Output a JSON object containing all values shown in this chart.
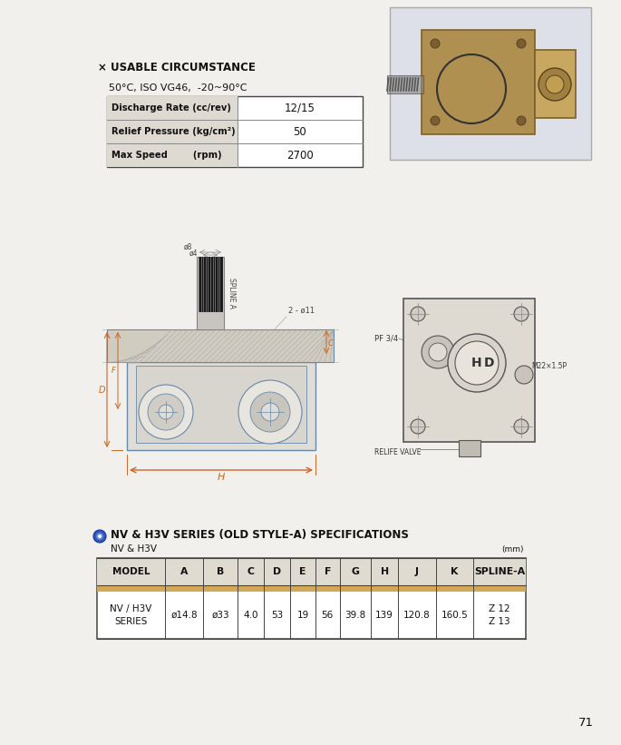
{
  "page_color": "#f2f0ec",
  "title_usable": "× USABLE CIRCUMSTANCE",
  "subtitle_condition": "50°C, ISO VG46,  -20~90°C",
  "spec_table": {
    "labels": [
      "Discharge Rate (cc/rev)",
      "Relief Pressure (kg/cm²)",
      "Max Speed        (rpm)"
    ],
    "values": [
      "12/15",
      "50",
      "2700"
    ]
  },
  "series_title": "NV & H3V SERIES (OLD STYLE-A) SPECIFICATIONS",
  "series_subtitle": "NV & H3V",
  "series_unit": "(mm)",
  "specs_table": {
    "headers": [
      "MODEL",
      "A",
      "B",
      "C",
      "D",
      "E",
      "F",
      "G",
      "H",
      "J",
      "K",
      "SPLINE-A"
    ],
    "row_label": "NV / H3V\nSERIES",
    "row_values": [
      "ø14.8",
      "ø33",
      "4.0",
      "53",
      "19",
      "56",
      "39.8",
      "139",
      "120.8",
      "160.5",
      "Z 12\nZ 13"
    ]
  },
  "page_number": "71",
  "border_color": "#444444",
  "text_color": "#111111",
  "dim_color": "#cc6622",
  "draw_color": "#6688aa",
  "header_bg": "#dedad2",
  "table_bg": "#ffffff",
  "photo_bg": "#c8bfb0"
}
